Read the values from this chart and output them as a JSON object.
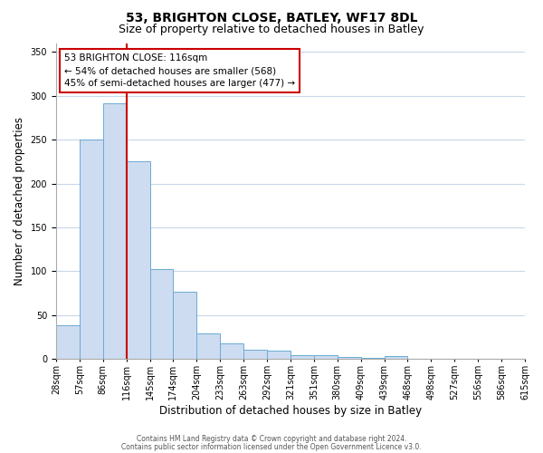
{
  "title": "53, BRIGHTON CLOSE, BATLEY, WF17 8DL",
  "subtitle": "Size of property relative to detached houses in Batley",
  "xlabel": "Distribution of detached houses by size in Batley",
  "ylabel": "Number of detached properties",
  "bar_values": [
    39,
    250,
    291,
    225,
    103,
    77,
    29,
    18,
    11,
    10,
    5,
    5,
    2,
    1,
    3,
    0,
    0,
    0,
    0,
    0
  ],
  "bin_labels": [
    "28sqm",
    "57sqm",
    "86sqm",
    "116sqm",
    "145sqm",
    "174sqm",
    "204sqm",
    "233sqm",
    "263sqm",
    "292sqm",
    "321sqm",
    "351sqm",
    "380sqm",
    "409sqm",
    "439sqm",
    "468sqm",
    "498sqm",
    "527sqm",
    "556sqm",
    "586sqm",
    "615sqm"
  ],
  "n_bins": 20,
  "bar_color": "#cddcf0",
  "bar_edge_color": "#6aaad4",
  "vline_color": "#cc0000",
  "vline_bin_index": 3,
  "ylim_max": 360,
  "yticks": [
    0,
    50,
    100,
    150,
    200,
    250,
    300,
    350
  ],
  "annotation_title": "53 BRIGHTON CLOSE: 116sqm",
  "annotation_line1": "← 54% of detached houses are smaller (568)",
  "annotation_line2": "45% of semi-detached houses are larger (477) →",
  "annotation_box_facecolor": "#ffffff",
  "annotation_box_edgecolor": "#cc0000",
  "footer_line1": "Contains HM Land Registry data © Crown copyright and database right 2024.",
  "footer_line2": "Contains public sector information licensed under the Open Government Licence v3.0.",
  "bg_color": "#ffffff",
  "grid_color": "#c8d8e8",
  "spine_color": "#aaaaaa",
  "title_fontsize": 10,
  "subtitle_fontsize": 9,
  "ylabel_fontsize": 8.5,
  "xlabel_fontsize": 8.5,
  "tick_fontsize": 7,
  "annotation_fontsize": 7.5,
  "footer_fontsize": 5.5
}
